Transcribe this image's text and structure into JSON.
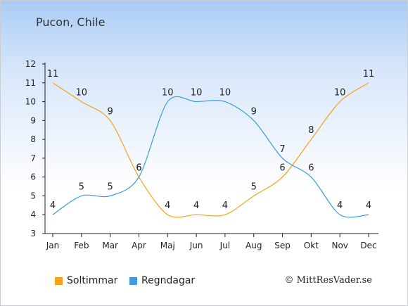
{
  "title": "Pucon, Chile",
  "copyright": "© MittResVader.se",
  "chart_data": {
    "type": "line",
    "categories": [
      "Jan",
      "Feb",
      "Mar",
      "Apr",
      "Maj",
      "Jun",
      "Jul",
      "Aug",
      "Sep",
      "Okt",
      "Nov",
      "Dec"
    ],
    "ylim": [
      3,
      12
    ],
    "yticks": [
      3,
      4,
      5,
      6,
      7,
      8,
      9,
      10,
      11,
      12
    ],
    "grid": false,
    "legend_position": "bottom",
    "series": [
      {
        "name": "Soltimmar",
        "color": "#f5a31a",
        "values": [
          11,
          10,
          9,
          6,
          4,
          4,
          4,
          5,
          6,
          8,
          10,
          11
        ]
      },
      {
        "name": "Regndagar",
        "color": "#3a9be0",
        "values": [
          4,
          5,
          5,
          6,
          10,
          10,
          10,
          9,
          7,
          6,
          4,
          4
        ]
      }
    ]
  }
}
